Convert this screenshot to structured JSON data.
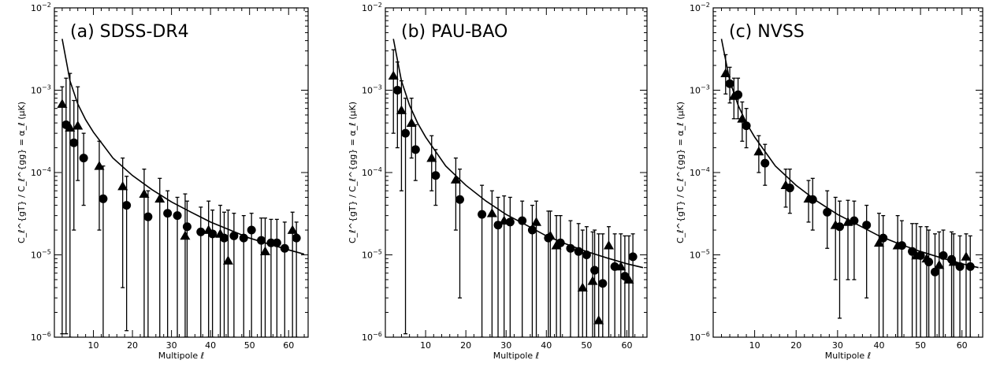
{
  "figure": {
    "xlabel": "Multipole ℓ",
    "ylabel": "C_ℓ^{gT} / C_ℓ^{gg} = α_ℓ (μK)",
    "xticks": [
      10,
      20,
      30,
      40,
      50,
      60
    ],
    "yticks": [
      {
        "value": 1e-06,
        "base": "10",
        "exp": "−6"
      },
      {
        "value": 1e-05,
        "base": "10",
        "exp": "−5"
      },
      {
        "value": 0.0001,
        "base": "10",
        "exp": "−4"
      },
      {
        "value": 0.001,
        "base": "10",
        "exp": "−3"
      },
      {
        "value": 0.01,
        "base": "10",
        "exp": "−2"
      }
    ]
  },
  "chart_data": [
    {
      "type": "scatter",
      "title": "(a) SDSS-DR4",
      "xlabel": "Multipole ℓ",
      "ylabel": "C_ℓ^{gT} / C_ℓ^{gg} = α_ℓ (μK)",
      "xlim": [
        0,
        65
      ],
      "ylim": [
        1e-06,
        0.01
      ],
      "yscale": "log",
      "grid": false,
      "model_curve": [
        {
          "x": 2,
          "y": 0.0042
        },
        {
          "x": 4,
          "y": 0.0013
        },
        {
          "x": 6,
          "y": 0.00068
        },
        {
          "x": 8,
          "y": 0.00044
        },
        {
          "x": 10,
          "y": 0.00031
        },
        {
          "x": 15,
          "y": 0.00015
        },
        {
          "x": 20,
          "y": 9.2e-05
        },
        {
          "x": 25,
          "y": 6.2e-05
        },
        {
          "x": 30,
          "y": 4.4e-05
        },
        {
          "x": 35,
          "y": 3.3e-05
        },
        {
          "x": 40,
          "y": 2.5e-05
        },
        {
          "x": 45,
          "y": 2e-05
        },
        {
          "x": 50,
          "y": 1.6e-05
        },
        {
          "x": 55,
          "y": 1.35e-05
        },
        {
          "x": 60,
          "y": 1.15e-05
        },
        {
          "x": 64,
          "y": 1.02e-05
        }
      ],
      "series": [
        {
          "marker": "circle",
          "points": [
            {
              "x": 3,
              "y": 0.00038,
              "lo": 1.1e-06,
              "hi": 0.0014
            },
            {
              "x": 5,
              "y": 0.00023,
              "lo": 2e-05,
              "hi": 0.00075
            },
            {
              "x": 7.5,
              "y": 0.00015,
              "lo": 4e-05,
              "hi": 0.0003
            },
            {
              "x": 12.5,
              "y": 4.8e-05,
              "lo": 1e-06,
              "hi": 0.00012
            },
            {
              "x": 18.5,
              "y": 4e-05,
              "lo": 1.2e-06,
              "hi": 9e-05
            },
            {
              "x": 24,
              "y": 2.9e-05,
              "lo": 1e-06,
              "hi": 6e-05
            },
            {
              "x": 29,
              "y": 3.2e-05,
              "lo": 1e-06,
              "hi": 6e-05
            },
            {
              "x": 31.5,
              "y": 3e-05,
              "lo": 1e-06,
              "hi": 5e-05
            },
            {
              "x": 34,
              "y": 2.2e-05,
              "lo": 1e-06,
              "hi": 4.5e-05
            },
            {
              "x": 37.5,
              "y": 1.9e-05,
              "lo": 1e-06,
              "hi": 3.8e-05
            },
            {
              "x": 40.5,
              "y": 1.8e-05,
              "lo": 1e-06,
              "hi": 3.5e-05
            },
            {
              "x": 43.5,
              "y": 1.6e-05,
              "lo": 1e-06,
              "hi": 3.3e-05
            },
            {
              "x": 46,
              "y": 1.7e-05,
              "lo": 1e-06,
              "hi": 3.2e-05
            },
            {
              "x": 48.5,
              "y": 1.6e-05,
              "lo": 1e-06,
              "hi": 3e-05
            },
            {
              "x": 50.5,
              "y": 2e-05,
              "lo": 1e-06,
              "hi": 3.2e-05
            },
            {
              "x": 53,
              "y": 1.5e-05,
              "lo": 1e-06,
              "hi": 2.8e-05
            },
            {
              "x": 55.5,
              "y": 1.4e-05,
              "lo": 1e-06,
              "hi": 2.7e-05
            },
            {
              "x": 57,
              "y": 1.4e-05,
              "lo": 1e-06,
              "hi": 2.7e-05
            },
            {
              "x": 59,
              "y": 1.2e-05,
              "lo": 1e-06,
              "hi": 2.5e-05
            },
            {
              "x": 62,
              "y": 1.6e-05,
              "lo": 1e-06,
              "hi": 2.5e-05
            }
          ]
        },
        {
          "marker": "triangle",
          "points": [
            {
              "x": 2,
              "y": 0.00068,
              "lo": 1.1e-06,
              "hi": 0.0011
            },
            {
              "x": 4,
              "y": 0.00035,
              "lo": 1e-06,
              "hi": 0.0016
            },
            {
              "x": 6,
              "y": 0.00037,
              "lo": 8e-05,
              "hi": 0.0011
            },
            {
              "x": 11.5,
              "y": 0.00012,
              "lo": 2e-05,
              "hi": 0.00024
            },
            {
              "x": 17.5,
              "y": 6.8e-05,
              "lo": 4e-06,
              "hi": 0.00015
            },
            {
              "x": 23,
              "y": 5.5e-05,
              "lo": 1e-06,
              "hi": 0.00011
            },
            {
              "x": 27,
              "y": 4.8e-05,
              "lo": 1e-06,
              "hi": 8.5e-05
            },
            {
              "x": 33.5,
              "y": 1.7e-05,
              "lo": 1e-06,
              "hi": 5.5e-05
            },
            {
              "x": 39.5,
              "y": 2e-05,
              "lo": 1e-06,
              "hi": 4.5e-05
            },
            {
              "x": 42.5,
              "y": 1.8e-05,
              "lo": 1e-06,
              "hi": 4e-05
            },
            {
              "x": 44.5,
              "y": 8.5e-06,
              "lo": 1e-06,
              "hi": 3.5e-05
            },
            {
              "x": 54,
              "y": 1.1e-05,
              "lo": 1e-06,
              "hi": 2.8e-05
            },
            {
              "x": 61,
              "y": 2e-05,
              "lo": 1e-06,
              "hi": 3.3e-05
            }
          ]
        }
      ]
    },
    {
      "type": "scatter",
      "title": "(b) PAU-BAO",
      "xlabel": "Multipole ℓ",
      "ylabel": "C_ℓ^{gT} / C_ℓ^{gg} = α_ℓ (μK)",
      "xlim": [
        0,
        65
      ],
      "ylim": [
        1e-06,
        0.01
      ],
      "yscale": "log",
      "grid": false,
      "model_curve": [
        {
          "x": 2,
          "y": 0.0042
        },
        {
          "x": 4,
          "y": 0.0013
        },
        {
          "x": 6,
          "y": 0.00066
        },
        {
          "x": 8,
          "y": 0.0004
        },
        {
          "x": 10,
          "y": 0.00027
        },
        {
          "x": 15,
          "y": 0.00012
        },
        {
          "x": 20,
          "y": 7e-05
        },
        {
          "x": 25,
          "y": 4.5e-05
        },
        {
          "x": 30,
          "y": 3.1e-05
        },
        {
          "x": 35,
          "y": 2.3e-05
        },
        {
          "x": 40,
          "y": 1.7e-05
        },
        {
          "x": 45,
          "y": 1.35e-05
        },
        {
          "x": 50,
          "y": 1.1e-05
        },
        {
          "x": 55,
          "y": 9.2e-06
        },
        {
          "x": 60,
          "y": 7.8e-06
        },
        {
          "x": 64,
          "y": 7e-06
        }
      ],
      "series": [
        {
          "marker": "circle",
          "points": [
            {
              "x": 3,
              "y": 0.001,
              "lo": 0.0002,
              "hi": 0.0022
            },
            {
              "x": 5,
              "y": 0.0003,
              "lo": 1.1e-06,
              "hi": 0.0008
            },
            {
              "x": 7.5,
              "y": 0.00019,
              "lo": 8e-05,
              "hi": 0.00038
            },
            {
              "x": 12.5,
              "y": 9.2e-05,
              "lo": 4e-05,
              "hi": 0.00019
            },
            {
              "x": 18.5,
              "y": 4.7e-05,
              "lo": 3e-06,
              "hi": 0.00011
            },
            {
              "x": 24,
              "y": 3.1e-05,
              "lo": 1e-06,
              "hi": 7e-05
            },
            {
              "x": 28,
              "y": 2.3e-05,
              "lo": 1e-06,
              "hi": 5e-05
            },
            {
              "x": 31,
              "y": 2.5e-05,
              "lo": 1e-06,
              "hi": 5e-05
            },
            {
              "x": 34,
              "y": 2.6e-05,
              "lo": 1e-06,
              "hi": 4.5e-05
            },
            {
              "x": 36.5,
              "y": 2e-05,
              "lo": 1e-06,
              "hi": 4e-05
            },
            {
              "x": 40.5,
              "y": 1.6e-05,
              "lo": 1e-06,
              "hi": 3.4e-05
            },
            {
              "x": 43.5,
              "y": 1.4e-05,
              "lo": 1e-06,
              "hi": 3e-05
            },
            {
              "x": 46,
              "y": 1.2e-05,
              "lo": 1e-06,
              "hi": 2.6e-05
            },
            {
              "x": 48,
              "y": 1.1e-05,
              "lo": 1e-06,
              "hi": 2.4e-05
            },
            {
              "x": 50,
              "y": 1e-05,
              "lo": 1e-06,
              "hi": 2.2e-05
            },
            {
              "x": 52,
              "y": 6.5e-06,
              "lo": 1e-06,
              "hi": 2e-05
            },
            {
              "x": 54,
              "y": 4.5e-06,
              "lo": 1e-06,
              "hi": 1.8e-05
            },
            {
              "x": 57,
              "y": 7.2e-06,
              "lo": 1e-06,
              "hi": 1.8e-05
            },
            {
              "x": 59.5,
              "y": 5.5e-06,
              "lo": 1e-06,
              "hi": 1.7e-05
            },
            {
              "x": 61.5,
              "y": 9.5e-06,
              "lo": 1e-06,
              "hi": 1.8e-05
            }
          ]
        },
        {
          "marker": "triangle",
          "points": [
            {
              "x": 2,
              "y": 0.0015,
              "lo": 0.0003,
              "hi": 0.0031
            },
            {
              "x": 4,
              "y": 0.00057,
              "lo": 6e-05,
              "hi": 0.0013
            },
            {
              "x": 6.5,
              "y": 0.0004,
              "lo": 0.00015,
              "hi": 0.0008
            },
            {
              "x": 11.5,
              "y": 0.00015,
              "lo": 6e-05,
              "hi": 0.00028
            },
            {
              "x": 17.5,
              "y": 8.2e-05,
              "lo": 2e-05,
              "hi": 0.00015
            },
            {
              "x": 26.5,
              "y": 3.2e-05,
              "lo": 1e-06,
              "hi": 6e-05
            },
            {
              "x": 29.5,
              "y": 2.6e-05,
              "lo": 1e-06,
              "hi": 5.2e-05
            },
            {
              "x": 37.5,
              "y": 2.5e-05,
              "lo": 1e-06,
              "hi": 4.5e-05
            },
            {
              "x": 41,
              "y": 1.7e-05,
              "lo": 1e-06,
              "hi": 3.4e-05
            },
            {
              "x": 42.5,
              "y": 1.3e-05,
              "lo": 1e-06,
              "hi": 3e-05
            },
            {
              "x": 49,
              "y": 4e-06,
              "lo": 1e-06,
              "hi": 2e-05
            },
            {
              "x": 51.5,
              "y": 4.8e-06,
              "lo": 1e-06,
              "hi": 1.9e-05
            },
            {
              "x": 53,
              "y": 1.6e-06,
              "lo": 1e-06,
              "hi": 1.8e-05
            },
            {
              "x": 55.5,
              "y": 1.3e-05,
              "lo": 1e-06,
              "hi": 2.2e-05
            },
            {
              "x": 58.5,
              "y": 7.2e-06,
              "lo": 1e-06,
              "hi": 1.8e-05
            },
            {
              "x": 60.5,
              "y": 5e-06,
              "lo": 1e-06,
              "hi": 1.7e-05
            }
          ]
        }
      ]
    },
    {
      "type": "scatter",
      "title": "(c) NVSS",
      "xlabel": "Multipole ℓ",
      "ylabel": "C_ℓ^{gT} / C_ℓ^{gg} = α_ℓ (μK)",
      "xlim": [
        0,
        65
      ],
      "ylim": [
        1e-06,
        0.01
      ],
      "yscale": "log",
      "grid": false,
      "model_curve": [
        {
          "x": 2,
          "y": 0.0042
        },
        {
          "x": 4,
          "y": 0.0013
        },
        {
          "x": 6,
          "y": 0.00066
        },
        {
          "x": 8,
          "y": 0.0004
        },
        {
          "x": 10,
          "y": 0.00027
        },
        {
          "x": 15,
          "y": 0.00012
        },
        {
          "x": 20,
          "y": 7e-05
        },
        {
          "x": 25,
          "y": 4.5e-05
        },
        {
          "x": 30,
          "y": 3.1e-05
        },
        {
          "x": 35,
          "y": 2.3e-05
        },
        {
          "x": 40,
          "y": 1.7e-05
        },
        {
          "x": 45,
          "y": 1.35e-05
        },
        {
          "x": 50,
          "y": 1.1e-05
        },
        {
          "x": 55,
          "y": 9.2e-06
        },
        {
          "x": 60,
          "y": 7.8e-06
        },
        {
          "x": 64,
          "y": 7e-06
        }
      ],
      "series": [
        {
          "marker": "circle",
          "points": [
            {
              "x": 4,
              "y": 0.0012,
              "lo": 0.0007,
              "hi": 0.0019
            },
            {
              "x": 6,
              "y": 0.00088,
              "lo": 0.00045,
              "hi": 0.0014
            },
            {
              "x": 8,
              "y": 0.00037,
              "lo": 0.0002,
              "hi": 0.0006
            },
            {
              "x": 12.5,
              "y": 0.00013,
              "lo": 7e-05,
              "hi": 0.00022
            },
            {
              "x": 18.5,
              "y": 6.5e-05,
              "lo": 3.2e-05,
              "hi": 0.00011
            },
            {
              "x": 24,
              "y": 4.7e-05,
              "lo": 2e-05,
              "hi": 8.5e-05
            },
            {
              "x": 27.5,
              "y": 3.3e-05,
              "lo": 1.2e-05,
              "hi": 6e-05
            },
            {
              "x": 30.5,
              "y": 2.2e-05,
              "lo": 1.7e-06,
              "hi": 4.5e-05
            },
            {
              "x": 34,
              "y": 2.6e-05,
              "lo": 5e-06,
              "hi": 4.5e-05
            },
            {
              "x": 37,
              "y": 2.3e-05,
              "lo": 3e-06,
              "hi": 4e-05
            },
            {
              "x": 41,
              "y": 1.6e-05,
              "lo": 1e-06,
              "hi": 3e-05
            },
            {
              "x": 45.5,
              "y": 1.3e-05,
              "lo": 1e-06,
              "hi": 2.6e-05
            },
            {
              "x": 48,
              "y": 1.1e-05,
              "lo": 1e-06,
              "hi": 2.4e-05
            },
            {
              "x": 50,
              "y": 9.8e-06,
              "lo": 1e-06,
              "hi": 2.2e-05
            },
            {
              "x": 52,
              "y": 8.2e-06,
              "lo": 1e-06,
              "hi": 2e-05
            },
            {
              "x": 53.5,
              "y": 6.2e-06,
              "lo": 1e-06,
              "hi": 1.8e-05
            },
            {
              "x": 55.5,
              "y": 9.8e-06,
              "lo": 1e-06,
              "hi": 2e-05
            },
            {
              "x": 57.5,
              "y": 8.8e-06,
              "lo": 1e-06,
              "hi": 1.9e-05
            },
            {
              "x": 59.5,
              "y": 7.2e-06,
              "lo": 1e-06,
              "hi": 1.7e-05
            },
            {
              "x": 62,
              "y": 7.2e-06,
              "lo": 1e-06,
              "hi": 1.7e-05
            }
          ]
        },
        {
          "marker": "triangle",
          "points": [
            {
              "x": 3,
              "y": 0.0016,
              "lo": 0.0009,
              "hi": 0.0027
            },
            {
              "x": 5,
              "y": 0.00085,
              "lo": 0.00045,
              "hi": 0.0014
            },
            {
              "x": 7,
              "y": 0.00045,
              "lo": 0.00024,
              "hi": 0.00072
            },
            {
              "x": 11,
              "y": 0.00018,
              "lo": 0.0001,
              "hi": 0.00028
            },
            {
              "x": 17.5,
              "y": 7e-05,
              "lo": 3.8e-05,
              "hi": 0.00011
            },
            {
              "x": 23,
              "y": 4.8e-05,
              "lo": 2.5e-05,
              "hi": 8e-05
            },
            {
              "x": 29.5,
              "y": 2.3e-05,
              "lo": 5e-06,
              "hi": 5e-05
            },
            {
              "x": 32.5,
              "y": 2.5e-05,
              "lo": 5e-06,
              "hi": 4.6e-05
            },
            {
              "x": 40,
              "y": 1.4e-05,
              "lo": 1e-06,
              "hi": 3.2e-05
            },
            {
              "x": 44.5,
              "y": 1.3e-05,
              "lo": 1e-06,
              "hi": 3e-05
            },
            {
              "x": 49,
              "y": 9.8e-06,
              "lo": 1e-06,
              "hi": 2.4e-05
            },
            {
              "x": 51.5,
              "y": 9e-06,
              "lo": 1e-06,
              "hi": 2.2e-05
            },
            {
              "x": 54.5,
              "y": 7.5e-06,
              "lo": 1e-06,
              "hi": 1.9e-05
            },
            {
              "x": 58,
              "y": 8.2e-06,
              "lo": 1e-06,
              "hi": 1.8e-05
            },
            {
              "x": 61,
              "y": 9.5e-06,
              "lo": 1e-06,
              "hi": 1.8e-05
            }
          ]
        }
      ]
    }
  ]
}
